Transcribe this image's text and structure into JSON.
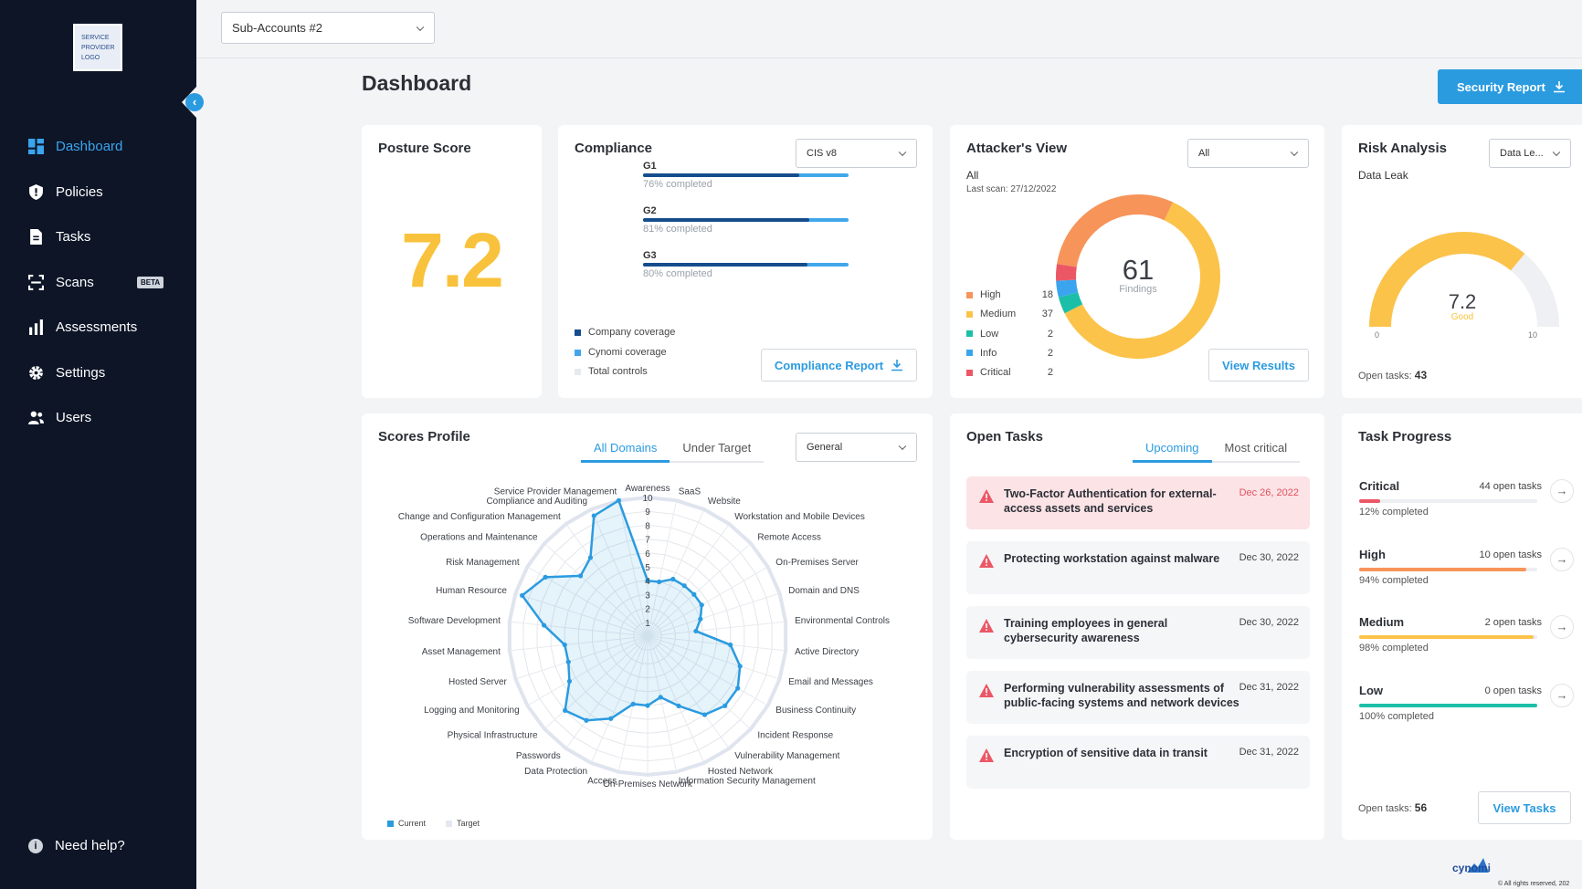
{
  "sidebar": {
    "logo_text": "SERVICE PROVIDER LOGO",
    "items": [
      {
        "label": "Dashboard",
        "icon": "grid-icon"
      },
      {
        "label": "Policies",
        "icon": "shield-icon"
      },
      {
        "label": "Tasks",
        "icon": "document-icon"
      },
      {
        "label": "Scans",
        "icon": "scan-icon",
        "badge": "BETA"
      },
      {
        "label": "Assessments",
        "icon": "bar-chart-icon"
      },
      {
        "label": "Settings",
        "icon": "gear-icon"
      },
      {
        "label": "Users",
        "icon": "users-icon"
      }
    ],
    "help_label": "Need help?",
    "active_color": "#3aa5ee"
  },
  "topbar": {
    "account_select": "Sub-Accounts #2"
  },
  "page": {
    "title": "Dashboard",
    "security_report_label": "Security Report"
  },
  "posture": {
    "title": "Posture Score",
    "score": "7.2",
    "score_color": "#f9c23c"
  },
  "compliance": {
    "title": "Compliance",
    "framework": "CIS v8",
    "groups": [
      {
        "label": "G1",
        "completed_text": "76% completed",
        "company": 0.76
      },
      {
        "label": "G2",
        "completed_text": "81% completed",
        "company": 0.81
      },
      {
        "label": "G3",
        "completed_text": "80% completed",
        "company": 0.8
      }
    ],
    "legend": [
      "Company coverage",
      "Cynomi coverage",
      "Total controls"
    ],
    "report_label": "Compliance Report"
  },
  "attacker": {
    "title": "Attacker's View",
    "filter": "All",
    "subtitle": "All",
    "last_scan": "Last scan: 27/12/2022",
    "total": "61",
    "total_label": "Findings",
    "levels": [
      {
        "name": "High",
        "count": "18",
        "color": "#f7945a"
      },
      {
        "name": "Medium",
        "count": "37",
        "color": "#fbc34a"
      },
      {
        "name": "Low",
        "count": "2",
        "color": "#1bbfa8"
      },
      {
        "name": "Info",
        "count": "2",
        "color": "#3aa5ee"
      },
      {
        "name": "Critical",
        "count": "2",
        "color": "#ec5766"
      }
    ],
    "view_label": "View Results"
  },
  "risk": {
    "title": "Risk Analysis",
    "filter": "Data Le...",
    "subtitle": "Data Leak",
    "score": "7.2",
    "rating": "Good",
    "min": "0",
    "max": "10",
    "open_tasks_label": "Open tasks:",
    "open_tasks": "43"
  },
  "scores": {
    "title": "Scores Profile",
    "tabs": [
      "All Domains",
      "Under Target"
    ],
    "filter": "General",
    "legend": [
      "Current",
      "Target"
    ],
    "ticks": [
      "1",
      "2",
      "3",
      "4",
      "5",
      "6",
      "7",
      "8",
      "9",
      "10"
    ]
  },
  "chart_data": {
    "type": "radar",
    "range": [
      0,
      10
    ],
    "categories": [
      "Awareness",
      "SaaS",
      "Website",
      "Workstation and Mobile Devices",
      "Remote Access",
      "On-Premises Server",
      "Domain and DNS",
      "Environmental Controls",
      "Active Directory",
      "Email and Messages",
      "Business Continuity",
      "Incident Response",
      "Vulnerability Management",
      "Hosted Network",
      "Information Security Management",
      "On-Premises Network",
      "Access",
      "Data Protection",
      "Passwords",
      "Physical Infrastructure",
      "Logging and Monitoring",
      "Hosted Server",
      "Asset Management",
      "Software Development",
      "Human Resource",
      "Risk Management",
      "Operations and Maintenance",
      "Change and Configuration Management",
      "Compliance and Auditing",
      "Service Provider Management"
    ],
    "series": [
      {
        "name": "Current",
        "values": [
          4,
          4,
          4.5,
          4.5,
          4.5,
          4.5,
          4,
          3.5,
          6,
          7,
          7.5,
          7.5,
          7,
          5.5,
          4.5,
          5,
          5,
          6.5,
          7.5,
          8,
          6.5,
          6,
          6,
          7.5,
          9.5,
          8.5,
          6.5,
          7,
          9.5,
          10
        ]
      },
      {
        "name": "Target",
        "values": [
          10,
          10,
          10,
          10,
          10,
          10,
          10,
          10,
          10,
          10,
          10,
          10,
          10,
          10,
          10,
          10,
          10,
          10,
          10,
          10,
          10,
          10,
          10,
          10,
          10,
          10,
          10,
          10,
          10,
          10
        ]
      }
    ],
    "legend": "bottom-left"
  },
  "open_tasks": {
    "title": "Open Tasks",
    "tabs": [
      "Upcoming",
      "Most critical"
    ],
    "items": [
      {
        "title": "Two-Factor Authentication for external-access assets and services",
        "date": "Dec 26, 2022",
        "critical": true
      },
      {
        "title": "Protecting workstation against malware",
        "date": "Dec 30, 2022"
      },
      {
        "title": "Training employees in general cybersecurity awareness",
        "date": "Dec 30, 2022"
      },
      {
        "title": "Performing vulnerability assessments of public-facing systems and network devices",
        "date": "Dec 31, 2022"
      },
      {
        "title": "Encryption of sensitive data in transit",
        "date": "Dec 31, 2022"
      }
    ]
  },
  "task_progress": {
    "title": "Task Progress",
    "rows": [
      {
        "name": "Critical",
        "count": "44 open tasks",
        "completed_text": "12% completed",
        "fraction": 0.12,
        "color": "#ec5766"
      },
      {
        "name": "High",
        "count": "10 open tasks",
        "completed_text": "94% completed",
        "fraction": 0.94,
        "color": "#f7945a"
      },
      {
        "name": "Medium",
        "count": "2 open tasks",
        "completed_text": "98% completed",
        "fraction": 0.98,
        "color": "#fbc34a"
      },
      {
        "name": "Low",
        "count": "0 open tasks",
        "completed_text": "100% completed",
        "fraction": 1.0,
        "color": "#1bbfa8"
      }
    ],
    "open_tasks_label": "Open tasks:",
    "open_tasks": "56",
    "view_label": "View Tasks"
  },
  "footer": {
    "brand": "cynomi",
    "copyright": "© All rights reserved, 202"
  }
}
